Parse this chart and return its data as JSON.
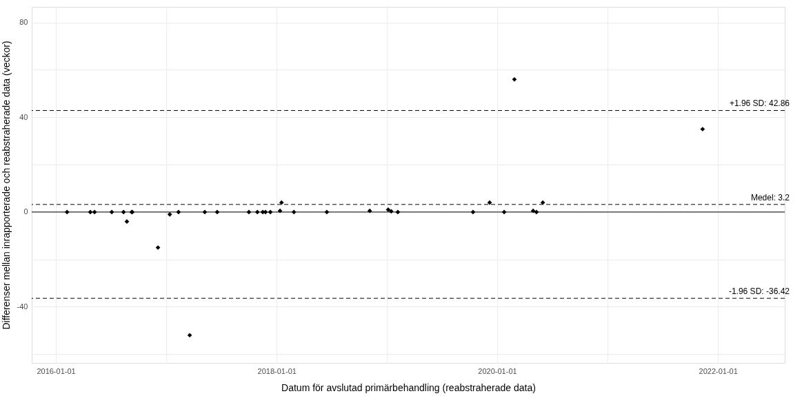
{
  "chart_data": {
    "type": "scatter",
    "xlabel": "Datum för avslutad primärbehandling (reabstraherade data)",
    "ylabel": "Differenser mellan inrapporterade och reabstraherade data (veckor)",
    "x": [
      "2016-02-07",
      "2016-04-24",
      "2016-05-08",
      "2016-07-04",
      "2016-08-12",
      "2016-08-23",
      "2016-09-08",
      "2016-09-10",
      "2016-12-04",
      "2017-01-12",
      "2017-02-10",
      "2017-03-19",
      "2017-05-08",
      "2017-06-18",
      "2017-10-01",
      "2017-10-29",
      "2017-11-16",
      "2017-11-25",
      "2017-12-11",
      "2018-01-12",
      "2018-01-17",
      "2018-02-27",
      "2018-06-16",
      "2018-11-05",
      "2019-01-05",
      "2019-01-15",
      "2019-02-06",
      "2019-10-13",
      "2019-12-07",
      "2020-01-24",
      "2020-02-27",
      "2020-04-29",
      "2020-05-10",
      "2020-05-31",
      "2021-11-11"
    ],
    "series": [
      {
        "color": "#000000",
        "values": [
          0,
          0,
          0,
          0,
          0,
          -4,
          0,
          0,
          -15,
          -1,
          0,
          -52,
          0,
          0,
          0,
          0,
          0,
          0,
          0,
          0.5,
          4,
          0,
          0,
          0.5,
          1,
          0.3,
          0,
          0,
          4,
          0,
          56,
          0.5,
          0,
          4,
          35
        ]
      }
    ],
    "xlim": [
      "2015-10-13",
      "2022-08-10"
    ],
    "xticks": [
      {
        "value": "2016-01-01",
        "label": "2016-01-01"
      },
      {
        "value": "2017-01-01",
        "label": null
      },
      {
        "value": "2018-01-01",
        "label": "2018-01-01"
      },
      {
        "value": "2019-01-01",
        "label": null
      },
      {
        "value": "2020-01-01",
        "label": "2020-01-01"
      },
      {
        "value": "2021-01-01",
        "label": null
      },
      {
        "value": "2022-01-01",
        "label": "2022-01-01"
      }
    ],
    "ylim": [
      -63.7,
      86.6
    ],
    "yticks": [
      {
        "value": -60,
        "label": null
      },
      -40,
      {
        "value": -20,
        "label": null
      },
      0,
      {
        "value": 20,
        "label": null
      },
      40,
      {
        "value": 60,
        "label": null
      },
      80
    ],
    "ref_lines": [
      {
        "axis": "y",
        "value": 0,
        "label": null,
        "color": "#000000",
        "line_style": "solid"
      },
      {
        "axis": "y",
        "value": 42.86,
        "label": "+1.96 SD: 42.86",
        "color": "#000000",
        "line_style": "dashed"
      },
      {
        "axis": "y",
        "value": 3.2,
        "label": "Medel: 3.2",
        "color": "#000000",
        "line_style": "dashed"
      },
      {
        "axis": "y",
        "value": -36.42,
        "label": "-1.96 SD: -36.42",
        "color": "#000000",
        "line_style": "dashed"
      }
    ],
    "marker": "diamond",
    "grid": true
  }
}
